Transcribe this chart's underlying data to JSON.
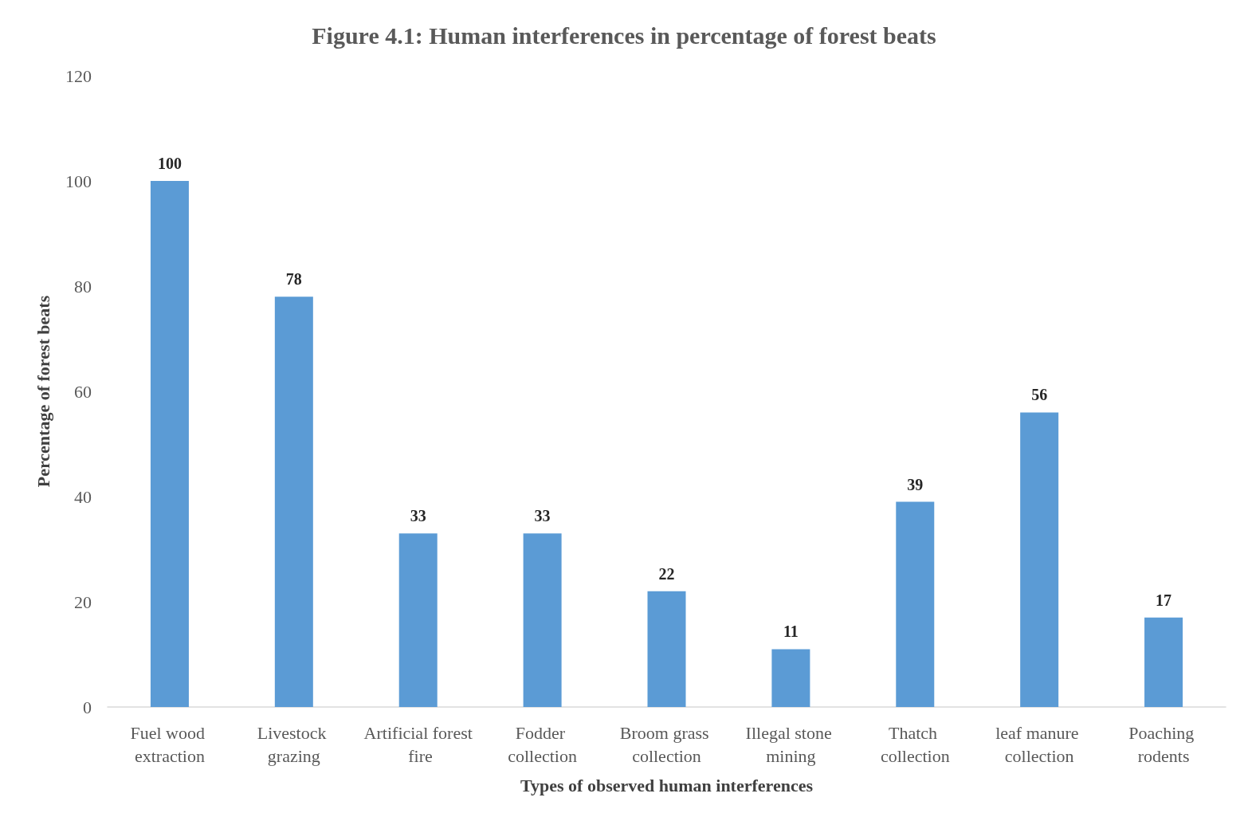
{
  "chart_data": {
    "type": "bar",
    "title": "Figure 4.1: Human interferences in percentage of forest beats",
    "xlabel": "Types of observed human interferences",
    "ylabel": "Percentage of forest beats",
    "categories": [
      "Fuel wood extraction",
      "Livestock grazing",
      "Artificial forest fire",
      "Fodder collection",
      "Broom grass collection",
      "Illegal stone mining",
      "Thatch collection",
      "leaf manure collection",
      "Poaching rodents"
    ],
    "values": [
      100,
      78,
      33,
      33,
      22,
      11,
      39,
      56,
      17
    ],
    "color": "#5b9bd5",
    "ylim": [
      0,
      120
    ],
    "yticks": [
      0,
      20,
      40,
      60,
      80,
      100,
      120
    ],
    "grid": false,
    "data_labels": true
  }
}
